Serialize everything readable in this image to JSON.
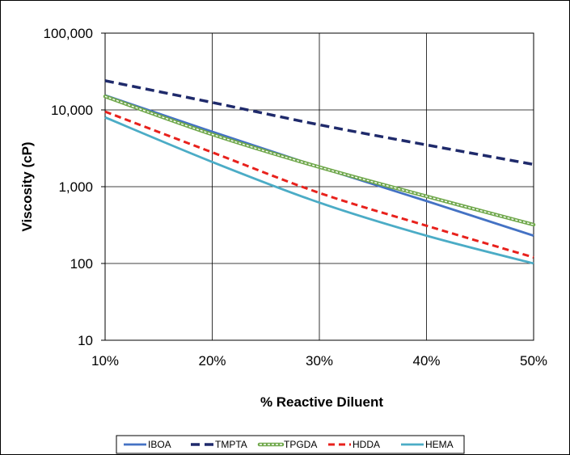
{
  "chart_data": {
    "type": "line",
    "title": "",
    "xlabel": "% Reactive Diluent",
    "ylabel": "Viscosity (cP)",
    "y_scale": "log",
    "xlim": [
      10,
      50
    ],
    "ylim": [
      10,
      100000
    ],
    "x_ticks": [
      10,
      20,
      30,
      40,
      50
    ],
    "x_tick_labels": [
      "10%",
      "20%",
      "30%",
      "40%",
      "50%"
    ],
    "y_ticks": [
      10,
      100,
      1000,
      10000,
      100000
    ],
    "y_tick_labels": [
      "10",
      "100",
      "1,000",
      "10,000",
      "100,000"
    ],
    "grid": true,
    "legend_position": "bottom",
    "x": [
      10,
      20,
      30,
      40,
      50
    ],
    "series": [
      {
        "name": "IBOA",
        "values": [
          15500,
          5200,
          1800,
          650,
          230
        ],
        "color": "#4472C4",
        "style": "solid"
      },
      {
        "name": "TMPTA",
        "values": [
          24000,
          12500,
          6400,
          3500,
          1950
        ],
        "color": "#1F2A6B",
        "style": "dashed"
      },
      {
        "name": "TPGDA",
        "values": [
          15000,
          4800,
          1800,
          750,
          320
        ],
        "color": "#70A84C",
        "style": "double"
      },
      {
        "name": "HDDA",
        "values": [
          9500,
          2800,
          830,
          310,
          120
        ],
        "color": "#E8211C",
        "style": "dashed"
      },
      {
        "name": "HEMA",
        "values": [
          8000,
          2100,
          620,
          230,
          100
        ],
        "color": "#4BACC6",
        "style": "solid"
      }
    ]
  }
}
